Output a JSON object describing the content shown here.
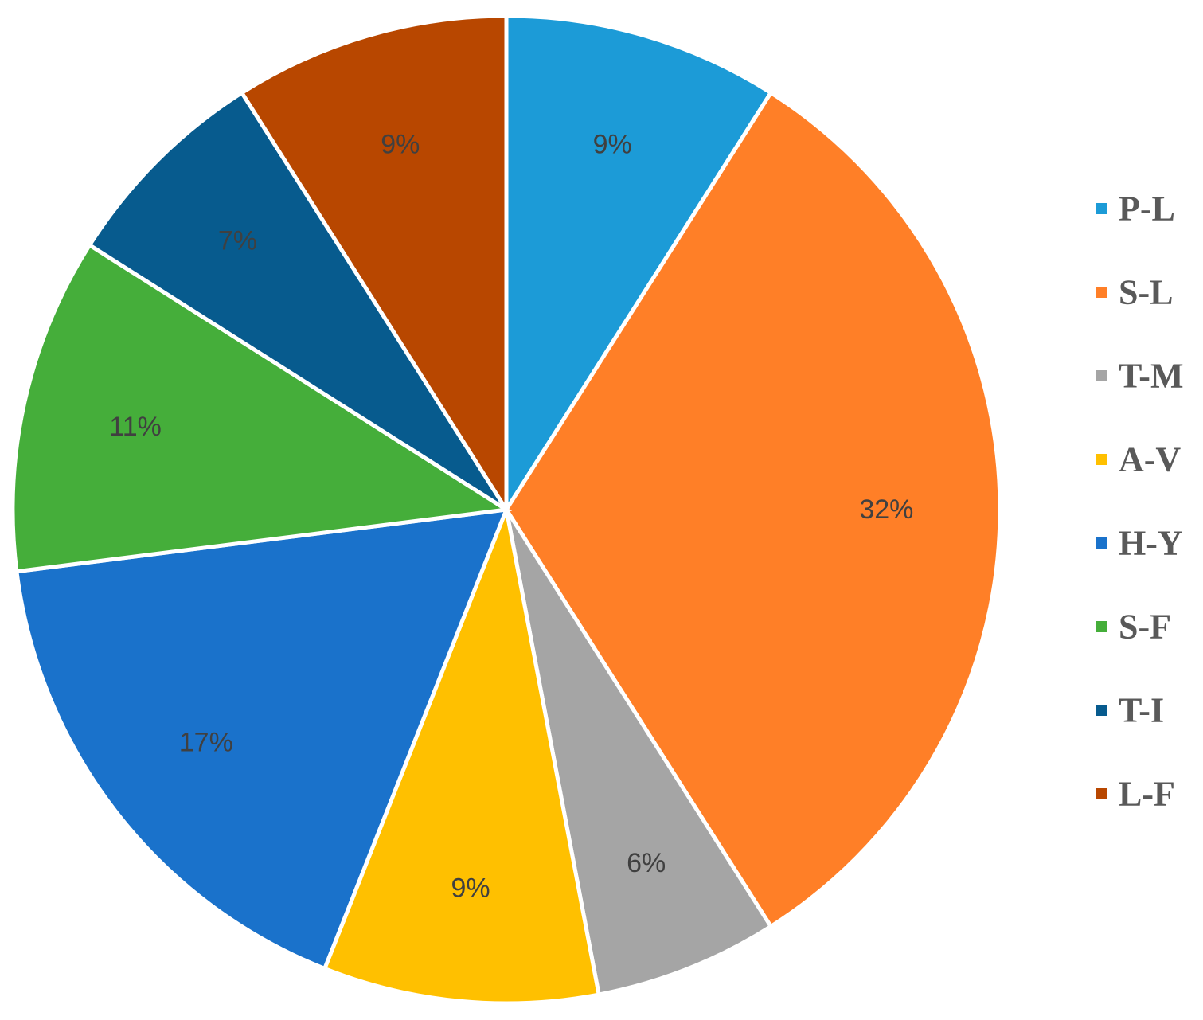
{
  "chart_data": {
    "type": "pie",
    "title": "",
    "start": "top",
    "direction": "clockwise",
    "legend_position": "right",
    "series": [
      {
        "name": "P-L",
        "value": 9,
        "label": "9%",
        "color": "#1C9BD7"
      },
      {
        "name": "S-L",
        "value": 32,
        "label": "32%",
        "color": "#FF7F27"
      },
      {
        "name": "T-M",
        "value": 6,
        "label": "6%",
        "color": "#A5A5A5"
      },
      {
        "name": "A-V",
        "value": 9,
        "label": "9%",
        "color": "#FFC000"
      },
      {
        "name": "H-Y",
        "value": 17,
        "label": "17%",
        "color": "#1A72CB"
      },
      {
        "name": "S-F",
        "value": 11,
        "label": "11%",
        "color": "#45AE3A"
      },
      {
        "name": "T-I",
        "value": 7,
        "label": "7%",
        "color": "#075B8E"
      },
      {
        "name": "L-F",
        "value": 9,
        "label": "9%",
        "color": "#B84700"
      }
    ]
  }
}
